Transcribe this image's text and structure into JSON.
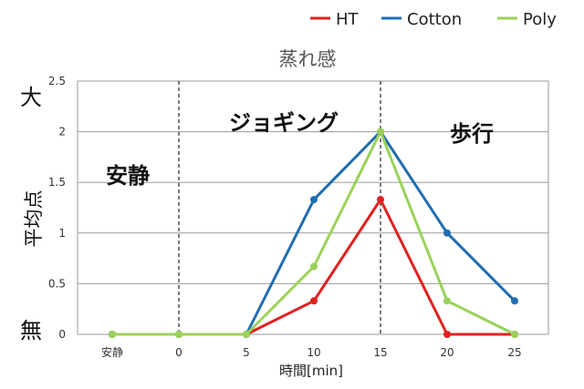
{
  "chart_data": {
    "type": "line",
    "title": "蒸れ感",
    "xlabel": "時間[min]",
    "ylabel": "平均点",
    "categories": [
      "安静",
      "0",
      "5",
      "10",
      "15",
      "20",
      "25"
    ],
    "ylim": [
      0,
      2.5
    ],
    "yticks": [
      "0",
      "0.5",
      "1",
      "1.5",
      "2",
      "2.5"
    ],
    "grid": true,
    "legend_position": "top-right",
    "scale_top_label": "大",
    "scale_bottom_label": "無",
    "phase_labels": [
      "安静",
      "ジョギング",
      "歩行"
    ],
    "series": [
      {
        "name": "HT",
        "color": "#e02020",
        "values": [
          0,
          0,
          0,
          0.33,
          1.33,
          0,
          0
        ]
      },
      {
        "name": "Cotton",
        "color": "#1f6eb0",
        "values": [
          0,
          0,
          0,
          1.33,
          2.0,
          1.0,
          0.33
        ]
      },
      {
        "name": "Poly",
        "color": "#9bd15a",
        "values": [
          0,
          0,
          0,
          0.67,
          2.0,
          0.33,
          0
        ]
      }
    ]
  }
}
